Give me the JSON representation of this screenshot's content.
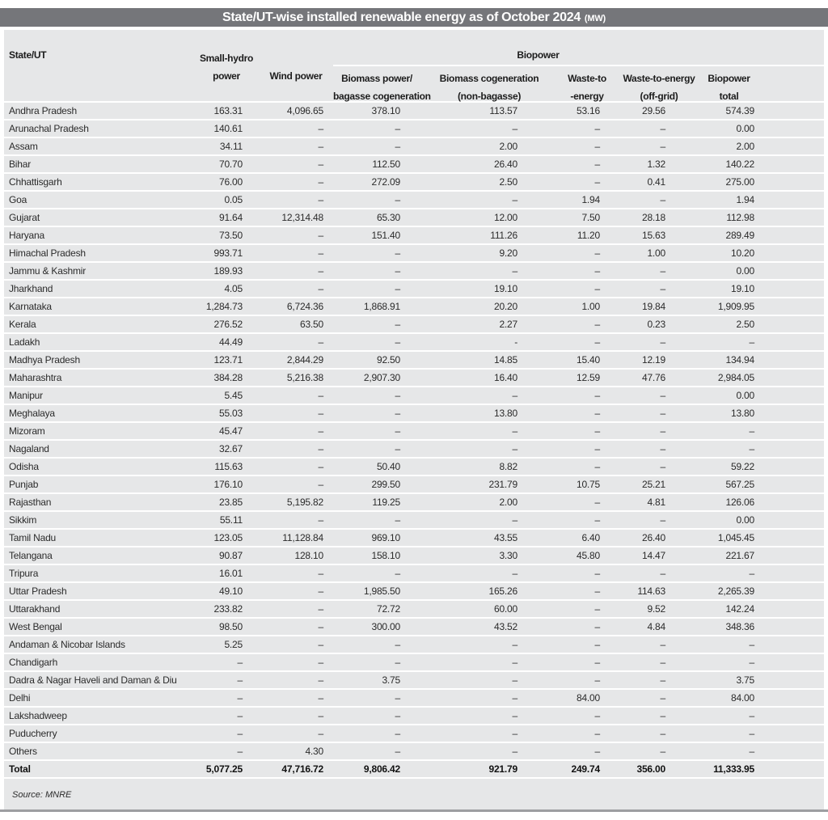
{
  "colors": {
    "title_bar": "#75767a",
    "panel": "#e6e7e8",
    "row_separator": "#ffffff",
    "bottom_bar": "#9d9ea1",
    "text": "#2b2b2b"
  },
  "chart_data": {
    "type": "table",
    "title": "State/UT-wise installed renewable energy as of October 2024",
    "title_unit": "(MW)",
    "group_header": "Biopower",
    "columns": {
      "state": "State/UT",
      "small_hydro": [
        "Small-hydro",
        "power"
      ],
      "wind": "Wind power",
      "bagasse": [
        "Biomass power/",
        "bagasse cogeneration"
      ],
      "non_bagasse": [
        "Biomass cogeneration",
        "(non-bagasse)"
      ],
      "wte": [
        "Waste-to",
        "-energy"
      ],
      "wte_offgrid": [
        "Waste-to-energy",
        "(off-grid)"
      ],
      "bio_total": [
        "Biopower",
        "total"
      ]
    },
    "rows": [
      {
        "state": "Andhra Pradesh",
        "values": [
          "163.31",
          "4,096.65",
          "378.10",
          "113.57",
          "53.16",
          "29.56",
          "574.39"
        ]
      },
      {
        "state": "Arunachal Pradesh",
        "values": [
          "140.61",
          "–",
          "–",
          "–",
          "–",
          "–",
          "0.00"
        ]
      },
      {
        "state": "Assam",
        "values": [
          "34.11",
          "–",
          "–",
          "2.00",
          "–",
          "–",
          "2.00"
        ]
      },
      {
        "state": "Bihar",
        "values": [
          "70.70",
          "–",
          "112.50",
          "26.40",
          "–",
          "1.32",
          "140.22"
        ]
      },
      {
        "state": "Chhattisgarh",
        "values": [
          "76.00",
          "–",
          "272.09",
          "2.50",
          "–",
          "0.41",
          "275.00"
        ]
      },
      {
        "state": "Goa",
        "values": [
          "0.05",
          "–",
          "–",
          "–",
          "1.94",
          "–",
          "1.94"
        ]
      },
      {
        "state": "Gujarat",
        "values": [
          "91.64",
          "12,314.48",
          "65.30",
          "12.00",
          "7.50",
          "28.18",
          "112.98"
        ]
      },
      {
        "state": "Haryana",
        "values": [
          "73.50",
          "–",
          "151.40",
          "111.26",
          "11.20",
          "15.63",
          "289.49"
        ]
      },
      {
        "state": "Himachal Pradesh",
        "values": [
          "993.71",
          "–",
          "–",
          "9.20",
          "–",
          "1.00",
          "10.20"
        ]
      },
      {
        "state": "Jammu & Kashmir",
        "values": [
          "189.93",
          "–",
          "–",
          "–",
          "–",
          "–",
          "0.00"
        ]
      },
      {
        "state": "Jharkhand",
        "values": [
          "4.05",
          "–",
          "–",
          "19.10",
          "–",
          "–",
          "19.10"
        ]
      },
      {
        "state": "Karnataka",
        "values": [
          "1,284.73",
          "6,724.36",
          "1,868.91",
          "20.20",
          "1.00",
          "19.84",
          "1,909.95"
        ]
      },
      {
        "state": "Kerala",
        "values": [
          "276.52",
          "63.50",
          "–",
          "2.27",
          "–",
          "0.23",
          "2.50"
        ]
      },
      {
        "state": "Ladakh",
        "values": [
          "44.49",
          "–",
          "–",
          "-",
          "–",
          "–",
          "–"
        ]
      },
      {
        "state": "Madhya Pradesh",
        "values": [
          "123.71",
          "2,844.29",
          "92.50",
          "14.85",
          "15.40",
          "12.19",
          "134.94"
        ]
      },
      {
        "state": "Maharashtra",
        "values": [
          "384.28",
          "5,216.38",
          "2,907.30",
          "16.40",
          "12.59",
          "47.76",
          "2,984.05"
        ]
      },
      {
        "state": "Manipur",
        "values": [
          "5.45",
          "–",
          "–",
          "–",
          "–",
          "–",
          "0.00"
        ]
      },
      {
        "state": "Meghalaya",
        "values": [
          "55.03",
          "–",
          "–",
          "13.80",
          "–",
          "–",
          "13.80"
        ]
      },
      {
        "state": "Mizoram",
        "values": [
          "45.47",
          "–",
          "–",
          "–",
          "–",
          "–",
          "–"
        ]
      },
      {
        "state": "Nagaland",
        "values": [
          "32.67",
          "–",
          "–",
          "–",
          "–",
          "–",
          "–"
        ]
      },
      {
        "state": "Odisha",
        "values": [
          "115.63",
          "–",
          "50.40",
          "8.82",
          "–",
          "–",
          "59.22"
        ]
      },
      {
        "state": "Punjab",
        "values": [
          "176.10",
          "–",
          "299.50",
          "231.79",
          "10.75",
          "25.21",
          "567.25"
        ]
      },
      {
        "state": "Rajasthan",
        "values": [
          "23.85",
          "5,195.82",
          "119.25",
          "2.00",
          "–",
          "4.81",
          "126.06"
        ]
      },
      {
        "state": "Sikkim",
        "values": [
          "55.11",
          "–",
          "–",
          "–",
          "–",
          "–",
          "0.00"
        ]
      },
      {
        "state": "Tamil Nadu",
        "values": [
          "123.05",
          "11,128.84",
          "969.10",
          "43.55",
          "6.40",
          "26.40",
          "1,045.45"
        ]
      },
      {
        "state": "Telangana",
        "values": [
          "90.87",
          "128.10",
          "158.10",
          "3.30",
          "45.80",
          "14.47",
          "221.67"
        ]
      },
      {
        "state": "Tripura",
        "values": [
          "16.01",
          "–",
          "–",
          "–",
          "–",
          "–",
          "–"
        ]
      },
      {
        "state": "Uttar Pradesh",
        "values": [
          "49.10",
          "–",
          "1,985.50",
          "165.26",
          "–",
          "114.63",
          "2,265.39"
        ]
      },
      {
        "state": "Uttarakhand",
        "values": [
          "233.82",
          "–",
          "72.72",
          "60.00",
          "–",
          "9.52",
          "142.24"
        ]
      },
      {
        "state": "West Bengal",
        "values": [
          "98.50",
          "–",
          "300.00",
          "43.52",
          "–",
          "4.84",
          "348.36"
        ]
      },
      {
        "state": "Andaman & Nicobar Islands",
        "values": [
          "5.25",
          "–",
          "–",
          "–",
          "–",
          "–",
          "–"
        ]
      },
      {
        "state": "Chandigarh",
        "values": [
          "–",
          "–",
          "–",
          "–",
          "–",
          "–",
          "–"
        ]
      },
      {
        "state": "Dadra & Nagar Haveli and Daman & Diu",
        "values": [
          "–",
          "–",
          "3.75",
          "–",
          "–",
          "–",
          "3.75"
        ]
      },
      {
        "state": "Delhi",
        "values": [
          "–",
          "–",
          "–",
          "–",
          "84.00",
          "–",
          "84.00"
        ]
      },
      {
        "state": "Lakshadweep",
        "values": [
          "–",
          "–",
          "–",
          "–",
          "–",
          "–",
          "–"
        ]
      },
      {
        "state": "Puducherry",
        "values": [
          "–",
          "–",
          "–",
          "–",
          "–",
          "–",
          "–"
        ]
      },
      {
        "state": "Others",
        "values": [
          "–",
          "4.30",
          "–",
          "–",
          "–",
          "–",
          "–"
        ]
      }
    ],
    "total": {
      "state": "Total",
      "values": [
        "5,077.25",
        "47,716.72",
        "9,806.42",
        "921.79",
        "249.74",
        "356.00",
        "11,333.95"
      ]
    },
    "source": "Source: MNRE"
  }
}
